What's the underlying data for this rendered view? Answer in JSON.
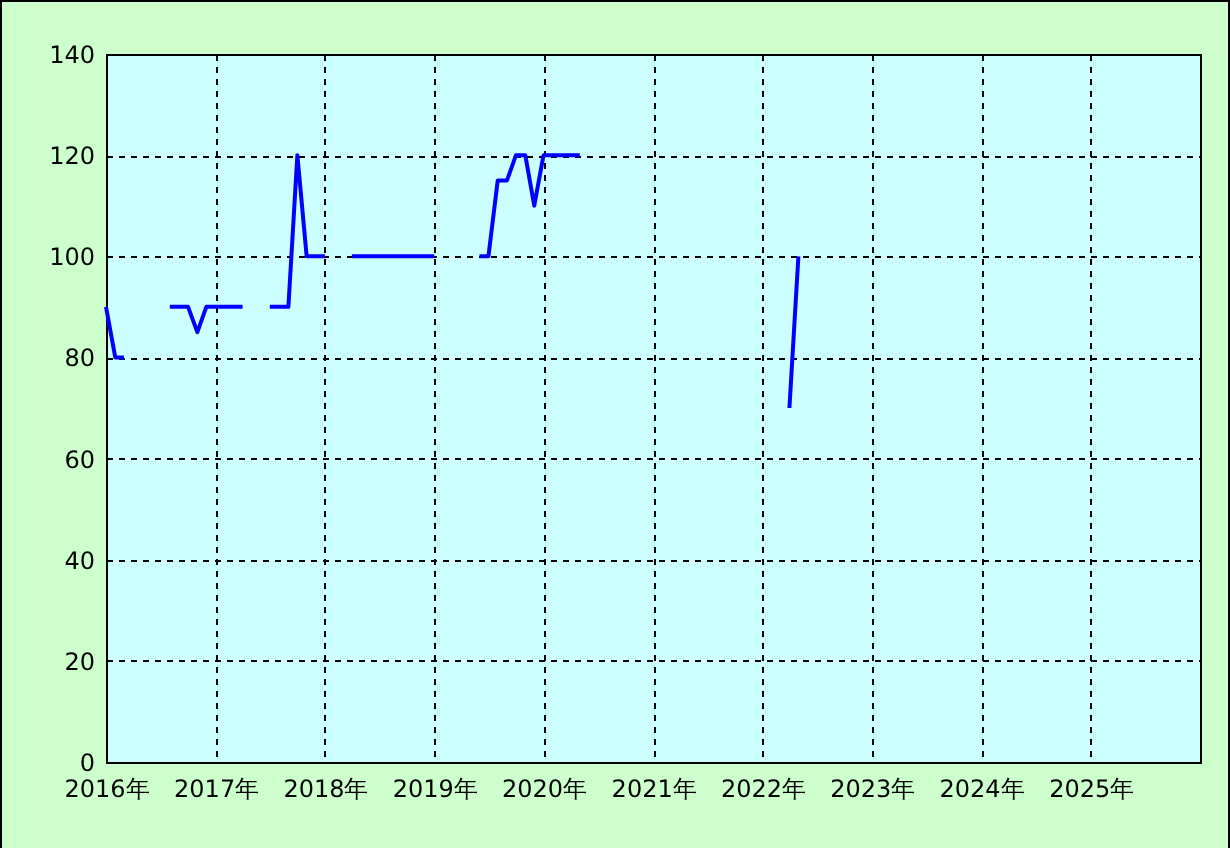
{
  "chart_data": {
    "type": "line",
    "x": [
      "2016-01",
      "2016-02",
      "2016-03",
      "2016-04",
      "2016-08",
      "2016-09",
      "2016-10",
      "2016-11",
      "2016-12",
      "2017-01",
      "2017-02",
      "2017-03",
      "2017-04",
      "2017-05",
      "2017-07",
      "2017-08",
      "2017-09",
      "2017-10",
      "2017-11",
      "2017-12",
      "2018-01",
      "2018-02",
      "2018-04",
      "2018-05",
      "2018-06",
      "2018-07",
      "2018-08",
      "2018-09",
      "2018-10",
      "2018-11",
      "2018-12",
      "2019-01",
      "2019-02",
      "2019-06",
      "2019-07",
      "2019-08",
      "2019-09",
      "2019-10",
      "2019-11",
      "2019-12",
      "2020-01",
      "2020-02",
      "2020-03",
      "2020-04",
      "2020-05",
      "2020-06",
      "2022-04",
      "2022-05"
    ],
    "series": [
      {
        "color": "#0000ff",
        "values": [
          90,
          80,
          80,
          null,
          90,
          90,
          90,
          85,
          90,
          90,
          90,
          90,
          90,
          null,
          90,
          90,
          90,
          120,
          100,
          100,
          100,
          null,
          100,
          100,
          100,
          100,
          100,
          100,
          100,
          100,
          100,
          100,
          null,
          100,
          100,
          115,
          115,
          120,
          120,
          110,
          120,
          120,
          120,
          120,
          120,
          null,
          70,
          100
        ]
      }
    ],
    "xlim": [
      "2016-01",
      "2026-01"
    ],
    "xticks": [
      {
        "value": "2016",
        "label": "2016年"
      },
      {
        "value": "2017",
        "label": "2017年"
      },
      {
        "value": "2018",
        "label": "2018年"
      },
      {
        "value": "2019",
        "label": "2019年"
      },
      {
        "value": "2020",
        "label": "2020年"
      },
      {
        "value": "2021",
        "label": "2021年"
      },
      {
        "value": "2022",
        "label": "2022年"
      },
      {
        "value": "2023",
        "label": "2023年"
      },
      {
        "value": "2024",
        "label": "2024年"
      },
      {
        "value": "2025",
        "label": "2025年"
      }
    ],
    "ylim": [
      0,
      140
    ],
    "yticks": [
      0,
      20,
      40,
      60,
      80,
      100,
      120,
      140
    ],
    "grid": true,
    "legend": false,
    "line_style": "solid",
    "marker": "none"
  }
}
